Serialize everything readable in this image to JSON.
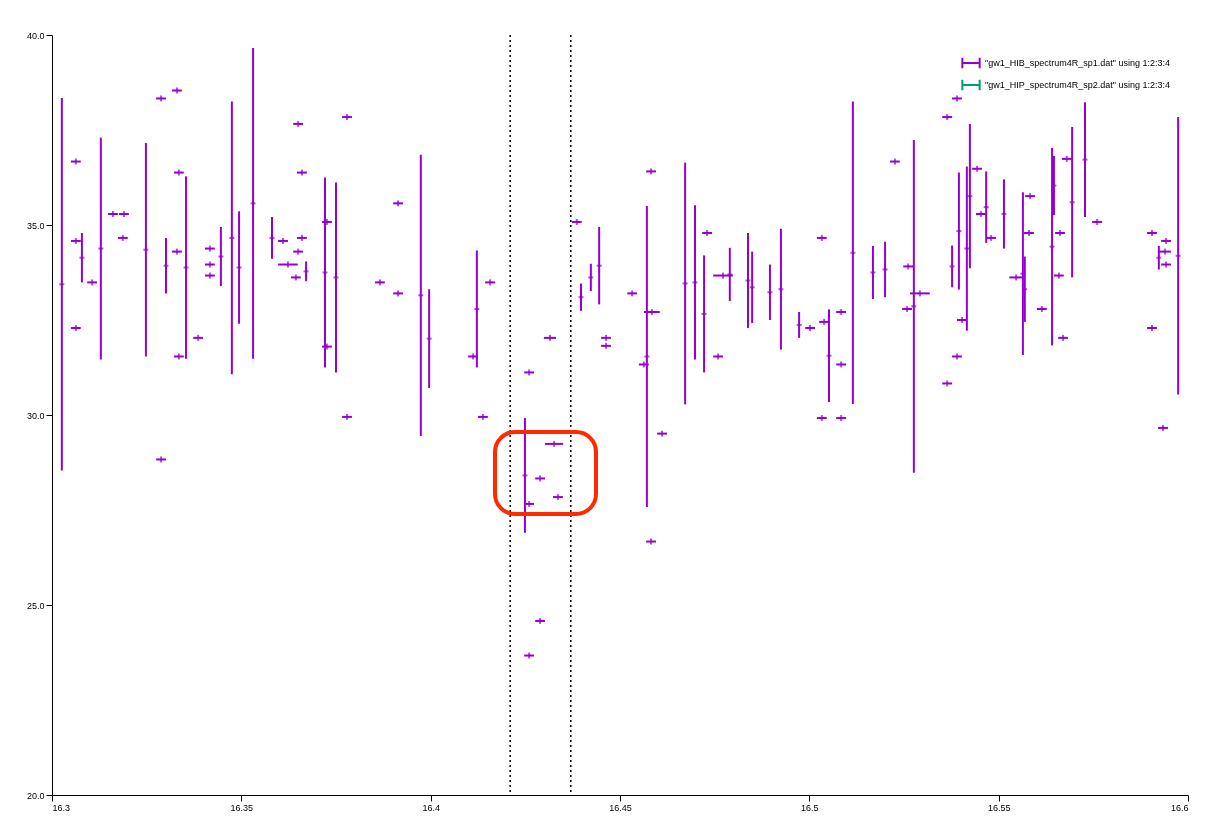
{
  "chart_data": {
    "type": "scatter",
    "legend": "top right",
    "grid": false,
    "xlim": [
      16.3,
      16.6
    ],
    "xticks": [
      16.3,
      16.35,
      16.4,
      16.45,
      16.5,
      16.55,
      16.6
    ],
    "ylim": [
      20,
      40
    ],
    "yticks": [
      {
        "value": 20,
        "label": "20.0"
      },
      {
        "value": 25,
        "label": "25.0"
      },
      {
        "value": 30,
        "label": "30.0"
      },
      {
        "value": 35,
        "label": "35.0"
      },
      {
        "value": 40,
        "label": "40.0"
      }
    ],
    "ref_lines": [
      {
        "axis": "x",
        "value": 16.421,
        "label": null,
        "color": "#000000",
        "line_style": "dotted"
      },
      {
        "axis": "x",
        "value": 16.437,
        "label": null,
        "color": "#000000",
        "line_style": "dotted"
      }
    ],
    "series": [
      {
        "name": "\"gw1_HIB_spectrum4R_sp1.dat\" using 1:2:3:4",
        "color": "#9400d3",
        "x": [
          16.3026,
          16.3063,
          16.3063,
          16.3063,
          16.3079,
          16.3106,
          16.3129,
          16.3161,
          16.319,
          16.3187,
          16.3248,
          16.3288,
          16.333,
          16.3288,
          16.3301,
          16.333,
          16.3335,
          16.3335,
          16.3354,
          16.3386,
          16.3417,
          16.3417,
          16.3417,
          16.3446,
          16.3475,
          16.3494,
          16.3531,
          16.3581,
          16.361,
          16.365,
          16.366,
          16.366,
          16.365,
          16.3623,
          16.3644,
          16.3671,
          16.3721,
          16.3726,
          16.3726,
          16.375,
          16.3779,
          16.3779,
          16.3866,
          16.3914,
          16.3914,
          16.3974,
          16.3996,
          16.4122,
          16.4112,
          16.4138,
          16.4157,
          16.4315,
          16.426,
          16.4249,
          16.426,
          16.4326,
          16.4289,
          16.4336,
          16.4289,
          16.426,
          16.4386,
          16.4397,
          16.4423,
          16.4445,
          16.4463,
          16.4463,
          16.4532,
          16.4582,
          16.4571,
          16.4584,
          16.4563,
          16.4611,
          16.4582,
          16.4672,
          16.4698,
          16.4722,
          16.473,
          16.4759,
          16.4772,
          16.479,
          16.4838,
          16.4849,
          16.4896,
          16.4925,
          16.4973,
          16.5002,
          16.5033,
          16.5052,
          16.5039,
          16.5084,
          16.5033,
          16.5084,
          16.5084,
          16.5115,
          16.539,
          16.5364,
          16.5226,
          16.5276,
          16.5292,
          16.5261,
          16.5258,
          16.5168,
          16.52,
          16.5377,
          16.5395,
          16.5424,
          16.5416,
          16.5403,
          16.5443,
          16.5467,
          16.548,
          16.5453,
          16.5514,
          16.5564,
          16.558,
          16.5546,
          16.5569,
          16.5583,
          16.5614,
          16.539,
          16.5364,
          16.5641,
          16.5646,
          16.5662,
          16.5659,
          16.567,
          16.5694,
          16.568,
          16.5728,
          16.576,
          16.5905,
          16.5905,
          16.5923,
          16.5939,
          16.5942,
          16.5942,
          16.5974,
          16.5934
        ],
        "values": [
          33.44,
          36.67,
          32.29,
          34.58,
          34.14,
          33.49,
          34.38,
          35.29,
          35.29,
          34.66,
          34.35,
          38.33,
          38.54,
          28.83,
          33.93,
          34.3,
          36.38,
          31.54,
          33.88,
          32.03,
          34.38,
          33.96,
          33.67,
          34.17,
          34.66,
          33.88,
          35.57,
          34.66,
          34.58,
          37.66,
          36.38,
          34.66,
          34.3,
          33.96,
          33.62,
          33.78,
          33.75,
          35.08,
          31.8,
          33.62,
          37.84,
          29.95,
          33.49,
          35.57,
          33.2,
          33.15,
          32.01,
          32.79,
          31.54,
          29.95,
          33.49,
          32.03,
          31.12,
          28.41,
          27.66,
          29.24,
          28.33,
          27.84,
          24.58,
          23.67,
          35.08,
          33.1,
          33.62,
          33.93,
          32.03,
          31.82,
          33.2,
          36.41,
          31.54,
          32.71,
          31.33,
          29.51,
          26.67,
          33.46,
          33.49,
          32.66,
          34.79,
          31.54,
          33.67,
          33.7,
          33.54,
          33.36,
          33.23,
          33.31,
          32.37,
          32.29,
          34.66,
          31.56,
          32.45,
          31.33,
          29.92,
          29.92,
          32.71,
          34.27,
          38.33,
          37.84,
          36.67,
          32.86,
          33.2,
          33.91,
          32.79,
          33.75,
          33.83,
          33.91,
          34.84,
          35.76,
          34.38,
          32.5,
          36.48,
          35.47,
          34.66,
          35.29,
          35.29,
          33.72,
          34.79,
          33.62,
          33.31,
          35.76,
          32.79,
          31.54,
          30.83,
          34.43,
          36.04,
          34.79,
          33.67,
          32.03,
          35.6,
          36.74,
          36.72,
          35.08,
          34.79,
          32.29,
          34.14,
          34.3,
          34.58,
          33.96,
          34.19,
          29.66
        ],
        "errors": [
          4.9,
          null,
          null,
          null,
          0.65,
          null,
          2.92,
          null,
          null,
          null,
          2.81,
          null,
          null,
          null,
          0.73,
          null,
          null,
          null,
          2.4,
          null,
          null,
          null,
          null,
          0.78,
          3.59,
          1.48,
          4.09,
          0.55,
          null,
          null,
          null,
          null,
          null,
          null,
          null,
          0.26,
          2.5,
          null,
          null,
          2.5,
          null,
          null,
          null,
          null,
          null,
          3.7,
          1.3,
          1.54,
          null,
          null,
          null,
          null,
          null,
          1.51,
          null,
          null,
          null,
          null,
          null,
          null,
          null,
          0.36,
          0.36,
          1.02,
          null,
          null,
          null,
          null,
          3.96,
          null,
          null,
          null,
          null,
          3.18,
          2.03,
          1.54,
          null,
          null,
          null,
          0.7,
          1.25,
          0.94,
          0.73,
          1.59,
          0.34,
          null,
          null,
          1.22,
          null,
          null,
          null,
          null,
          null,
          3.98,
          null,
          null,
          null,
          4.38,
          null,
          null,
          null,
          0.7,
          0.73,
          0.55,
          1.54,
          1.9,
          2.16,
          null,
          null,
          0.94,
          null,
          null,
          0.91,
          2.14,
          null,
          null,
          0.86,
          null,
          null,
          null,
          null,
          2.6,
          0.78,
          null,
          null,
          null,
          1.98,
          null,
          1.51,
          null,
          null,
          null,
          0.31,
          null,
          null,
          null,
          3.65,
          null
        ],
        "xerrors": [
          null,
          0.0013,
          0.0013,
          0.0013,
          null,
          0.0013,
          null,
          0.0013,
          0.0013,
          0.0013,
          null,
          0.0013,
          0.0013,
          0.0013,
          null,
          0.0013,
          0.0013,
          0.0013,
          null,
          0.0013,
          0.0013,
          0.0013,
          0.0013,
          null,
          null,
          null,
          null,
          null,
          0.0013,
          0.0013,
          0.0013,
          0.0013,
          0.0013,
          0.0026,
          0.0013,
          null,
          null,
          0.0013,
          0.0013,
          null,
          0.0013,
          0.0013,
          0.0013,
          0.0013,
          0.0013,
          null,
          null,
          null,
          0.0013,
          0.0013,
          0.0013,
          0.0016,
          0.0013,
          null,
          0.0013,
          0.0024,
          0.0013,
          0.0013,
          0.0013,
          0.0013,
          0.0013,
          null,
          null,
          null,
          0.0013,
          0.0013,
          0.0013,
          0.0013,
          null,
          0.0021,
          0.0013,
          0.0013,
          0.0013,
          null,
          null,
          null,
          0.0013,
          0.0013,
          0.0026,
          null,
          null,
          null,
          null,
          null,
          null,
          0.0013,
          0.0013,
          null,
          0.0013,
          0.0013,
          0.0013,
          0.0013,
          0.0013,
          null,
          0.0013,
          0.0013,
          0.0013,
          null,
          0.0026,
          0.0013,
          0.0013,
          null,
          null,
          null,
          null,
          null,
          null,
          0.0013,
          0.0013,
          null,
          0.0013,
          0.0013,
          null,
          null,
          0.0013,
          0.0018,
          null,
          0.0013,
          0.0013,
          0.0013,
          0.0013,
          null,
          null,
          0.0013,
          0.0013,
          0.0013,
          null,
          0.0013,
          null,
          0.0013,
          0.0013,
          0.0013,
          null,
          0.0016,
          0.0013,
          0.0013,
          null,
          0.0013
        ]
      },
      {
        "name": "\"gw1_HIP_spectrum4R_sp2.dat\" using 1:2:3:4",
        "color": "#009e73"
      }
    ]
  }
}
